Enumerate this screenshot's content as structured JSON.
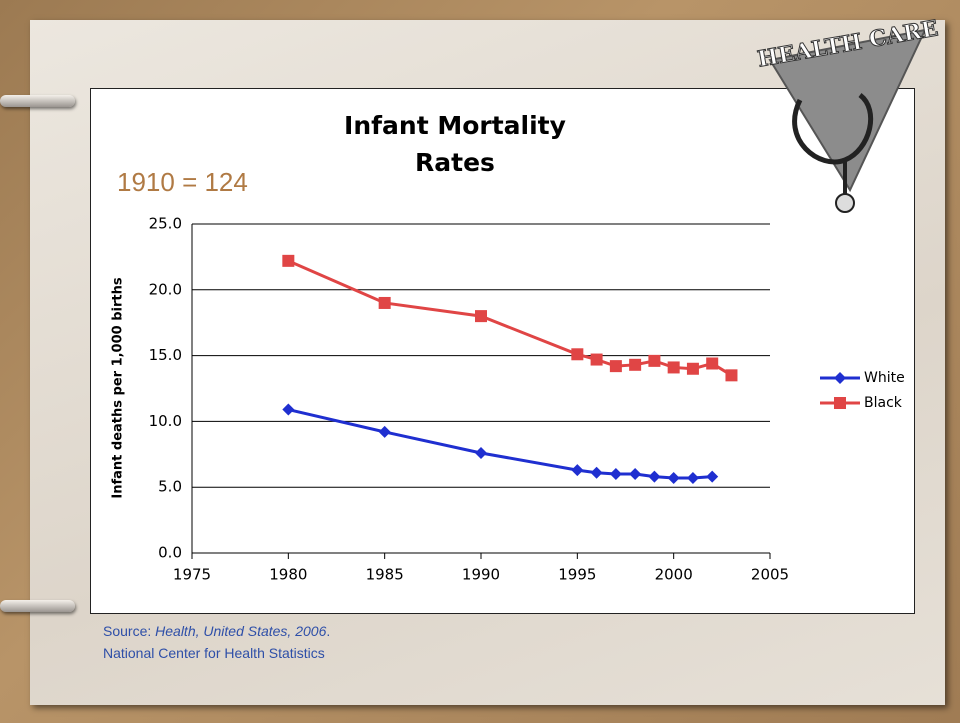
{
  "chart_data": {
    "type": "line",
    "title": [
      "Infant Mortality",
      "Rates"
    ],
    "annotation": "1910 = 124",
    "ylabel": "Infant deaths per 1,000 births",
    "x": [
      1980,
      1985,
      1990,
      1995,
      1996,
      1997,
      1998,
      1999,
      2000,
      2001,
      2002,
      2003
    ],
    "series": [
      {
        "name": "White",
        "color": "#1f2fd0",
        "marker": "diamond",
        "values": [
          10.9,
          9.2,
          7.6,
          6.3,
          6.1,
          6.0,
          6.0,
          5.8,
          5.7,
          5.7,
          5.8,
          null
        ]
      },
      {
        "name": "Black",
        "color": "#e04545",
        "marker": "square",
        "values": [
          22.2,
          19.0,
          18.0,
          15.1,
          14.7,
          14.2,
          14.3,
          14.6,
          14.1,
          14.0,
          14.4,
          13.5
        ]
      }
    ],
    "xlim": [
      1975,
      2005
    ],
    "xticks": [
      1975,
      1980,
      1985,
      1990,
      1995,
      2000,
      2005
    ],
    "ylim": [
      0,
      25
    ],
    "yticks": [
      {
        "value": 0,
        "label": "0.0"
      },
      {
        "value": 5,
        "label": "5.0"
      },
      {
        "value": 10,
        "label": "10.0"
      },
      {
        "value": 15,
        "label": "15.0"
      },
      {
        "value": 20,
        "label": "20.0"
      },
      {
        "value": 25,
        "label": "25.0"
      }
    ],
    "grid": true,
    "legend": "right"
  },
  "source": {
    "prefix": "Source: ",
    "title": "Health, United States, 2006",
    "suffix": ".",
    "organization": "National Center for Health Statistics"
  },
  "logo": "HEALTH CARE"
}
